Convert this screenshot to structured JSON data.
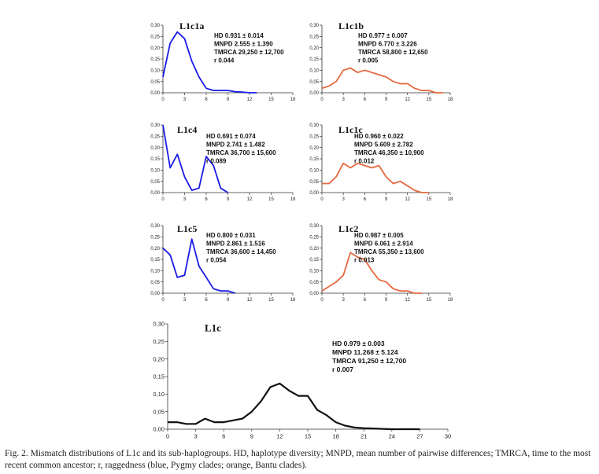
{
  "chart_data": [
    {
      "type": "line",
      "title": "L1c1a",
      "color": "#1a1ae6",
      "x": [
        0,
        1,
        2,
        3,
        4,
        5,
        6,
        7,
        8,
        9,
        10,
        11,
        12,
        13
      ],
      "y": [
        0.07,
        0.22,
        0.27,
        0.24,
        0.14,
        0.07,
        0.02,
        0.01,
        0.01,
        0.01,
        0.005,
        0.003,
        0,
        0
      ],
      "xticks": [
        "0",
        "3",
        "6",
        "9",
        "12",
        "15",
        "18"
      ],
      "yticks": [
        "0,00",
        "0,05",
        "0,10",
        "0,15",
        "0,20",
        "0,25",
        "0,30"
      ],
      "xlim": [
        0,
        18
      ],
      "ylim": [
        0,
        0.3
      ],
      "stats": [
        "HD  0.931 ± 0.014",
        "MNPD  2.555 ± 1.390",
        "TMRCA  29,250 ± 12,700",
        "r  0.044"
      ]
    },
    {
      "type": "line",
      "title": "L1c1b",
      "color": "#e5673f",
      "x": [
        0,
        1,
        2,
        3,
        4,
        5,
        6,
        7,
        8,
        9,
        10,
        11,
        12,
        13,
        14,
        15,
        16,
        17
      ],
      "y": [
        0.02,
        0.03,
        0.05,
        0.1,
        0.11,
        0.09,
        0.1,
        0.09,
        0.08,
        0.07,
        0.05,
        0.04,
        0.04,
        0.02,
        0.01,
        0.01,
        0,
        0
      ],
      "xticks": [
        "0",
        "3",
        "6",
        "9",
        "12",
        "15",
        "18"
      ],
      "yticks": [
        "0,00",
        "0,05",
        "0,10",
        "0,15",
        "0,20",
        "0,25",
        "0,30"
      ],
      "xlim": [
        0,
        18
      ],
      "ylim": [
        0,
        0.3
      ],
      "stats": [
        "HD  0.977 ± 0.007",
        "MNPD  6.770 ± 3.226",
        "TMRCA  58,800 ± 12,650",
        "r  0.005"
      ]
    },
    {
      "type": "line",
      "title": "L1c4",
      "color": "#1a1ae6",
      "x": [
        0,
        1,
        2,
        3,
        4,
        5,
        6,
        7,
        8,
        9
      ],
      "y": [
        0.3,
        0.11,
        0.17,
        0.07,
        0.01,
        0.02,
        0.16,
        0.12,
        0.02,
        0
      ],
      "xticks": [
        "0",
        "3",
        "6",
        "9",
        "12",
        "15",
        "18"
      ],
      "yticks": [
        "0,00",
        "0,05",
        "0,10",
        "0,15",
        "0,20",
        "0,25",
        "0,30"
      ],
      "xlim": [
        0,
        18
      ],
      "ylim": [
        0,
        0.3
      ],
      "stats": [
        "HD  0.691 ± 0.074",
        "MNPD  2.741 ± 1.482",
        "TMRCA  36,700 ± 15,600",
        "r  0.089"
      ]
    },
    {
      "type": "line",
      "title": "L1c1c",
      "color": "#e5673f",
      "x": [
        0,
        1,
        2,
        3,
        4,
        5,
        6,
        7,
        8,
        9,
        10,
        11,
        12,
        13,
        14,
        15
      ],
      "y": [
        0.04,
        0.04,
        0.07,
        0.13,
        0.11,
        0.13,
        0.12,
        0.11,
        0.12,
        0.07,
        0.04,
        0.05,
        0.03,
        0.01,
        0,
        0
      ],
      "xticks": [
        "0",
        "3",
        "6",
        "9",
        "12",
        "15",
        "18"
      ],
      "yticks": [
        "0,00",
        "0,05",
        "0,10",
        "0,15",
        "0,20",
        "0,25",
        "0,30"
      ],
      "xlim": [
        0,
        18
      ],
      "ylim": [
        0,
        0.3
      ],
      "stats": [
        "HD  0.960 ± 0.022",
        "MNPD  5.609 ± 2.782",
        "TMRCA  46,350 ± 10,900",
        "r  0.012"
      ]
    },
    {
      "type": "line",
      "title": "L1c5",
      "color": "#1a1ae6",
      "x": [
        0,
        1,
        2,
        3,
        4,
        5,
        6,
        7,
        8,
        9,
        10
      ],
      "y": [
        0.2,
        0.17,
        0.07,
        0.08,
        0.24,
        0.12,
        0.07,
        0.02,
        0.01,
        0.01,
        0
      ],
      "xticks": [
        "0",
        "3",
        "6",
        "9",
        "12",
        "15",
        "18"
      ],
      "yticks": [
        "0,00",
        "0,05",
        "0,10",
        "0,15",
        "0,20",
        "0,25",
        "0,30"
      ],
      "xlim": [
        0,
        18
      ],
      "ylim": [
        0,
        0.3
      ],
      "stats": [
        "HD  0.800 ± 0.031",
        "MNPD  2.861 ± 1.516",
        "TMRCA  36,600 ± 14,450",
        "r  0.054"
      ]
    },
    {
      "type": "line",
      "title": "L1c2",
      "color": "#e5673f",
      "x": [
        0,
        1,
        2,
        3,
        4,
        5,
        6,
        7,
        8,
        9,
        10,
        11,
        12,
        13,
        14
      ],
      "y": [
        0.01,
        0.03,
        0.05,
        0.08,
        0.18,
        0.16,
        0.15,
        0.1,
        0.06,
        0.05,
        0.02,
        0.01,
        0.01,
        0,
        0
      ],
      "xticks": [
        "0",
        "3",
        "6",
        "9",
        "12",
        "15",
        "18"
      ],
      "yticks": [
        "0,00",
        "0,05",
        "0,10",
        "0,15",
        "0,20",
        "0,25",
        "0,30"
      ],
      "xlim": [
        0,
        18
      ],
      "ylim": [
        0,
        0.3
      ],
      "stats": [
        "HD  0.987 ± 0.005",
        "MNPD  6.061 ± 2.914",
        "TMRCA  55,350 ± 13,600",
        "r  0.013"
      ]
    },
    {
      "type": "line",
      "title": "L1c",
      "color": "#111111",
      "x": [
        0,
        1,
        2,
        3,
        4,
        5,
        6,
        7,
        8,
        9,
        10,
        11,
        12,
        13,
        14,
        15,
        16,
        17,
        18,
        19,
        20,
        21,
        22,
        23,
        24,
        25,
        26,
        27
      ],
      "y": [
        0.02,
        0.02,
        0.015,
        0.015,
        0.03,
        0.02,
        0.02,
        0.025,
        0.03,
        0.05,
        0.08,
        0.12,
        0.13,
        0.11,
        0.095,
        0.095,
        0.055,
        0.04,
        0.02,
        0.01,
        0.005,
        0.003,
        0.002,
        0.001,
        0,
        0,
        0,
        0
      ],
      "xticks": [
        "0",
        "3",
        "6",
        "9",
        "12",
        "15",
        "18",
        "21",
        "24",
        "27",
        "30"
      ],
      "yticks": [
        "0,00",
        "0,05",
        "0,10",
        "0,15",
        "0,20",
        "0,25",
        "0,30"
      ],
      "xlim": [
        0,
        30
      ],
      "ylim": [
        0,
        0.3
      ],
      "stats": [
        "HD  0.979 ± 0.003",
        "MNPD  11.268 ± 5.124",
        "TMRCA  91,250 ± 12,700",
        "r  0.007"
      ]
    }
  ],
  "caption": "Fig. 2. Mismatch distributions of L1c and its sub-haplogroups. HD, haplotype diversity; MNPD, mean number of pairwise differences; TMRCA, time to the most recent common ancestor; r, raggedness (blue, Pygmy clades; orange, Bantu clades)."
}
